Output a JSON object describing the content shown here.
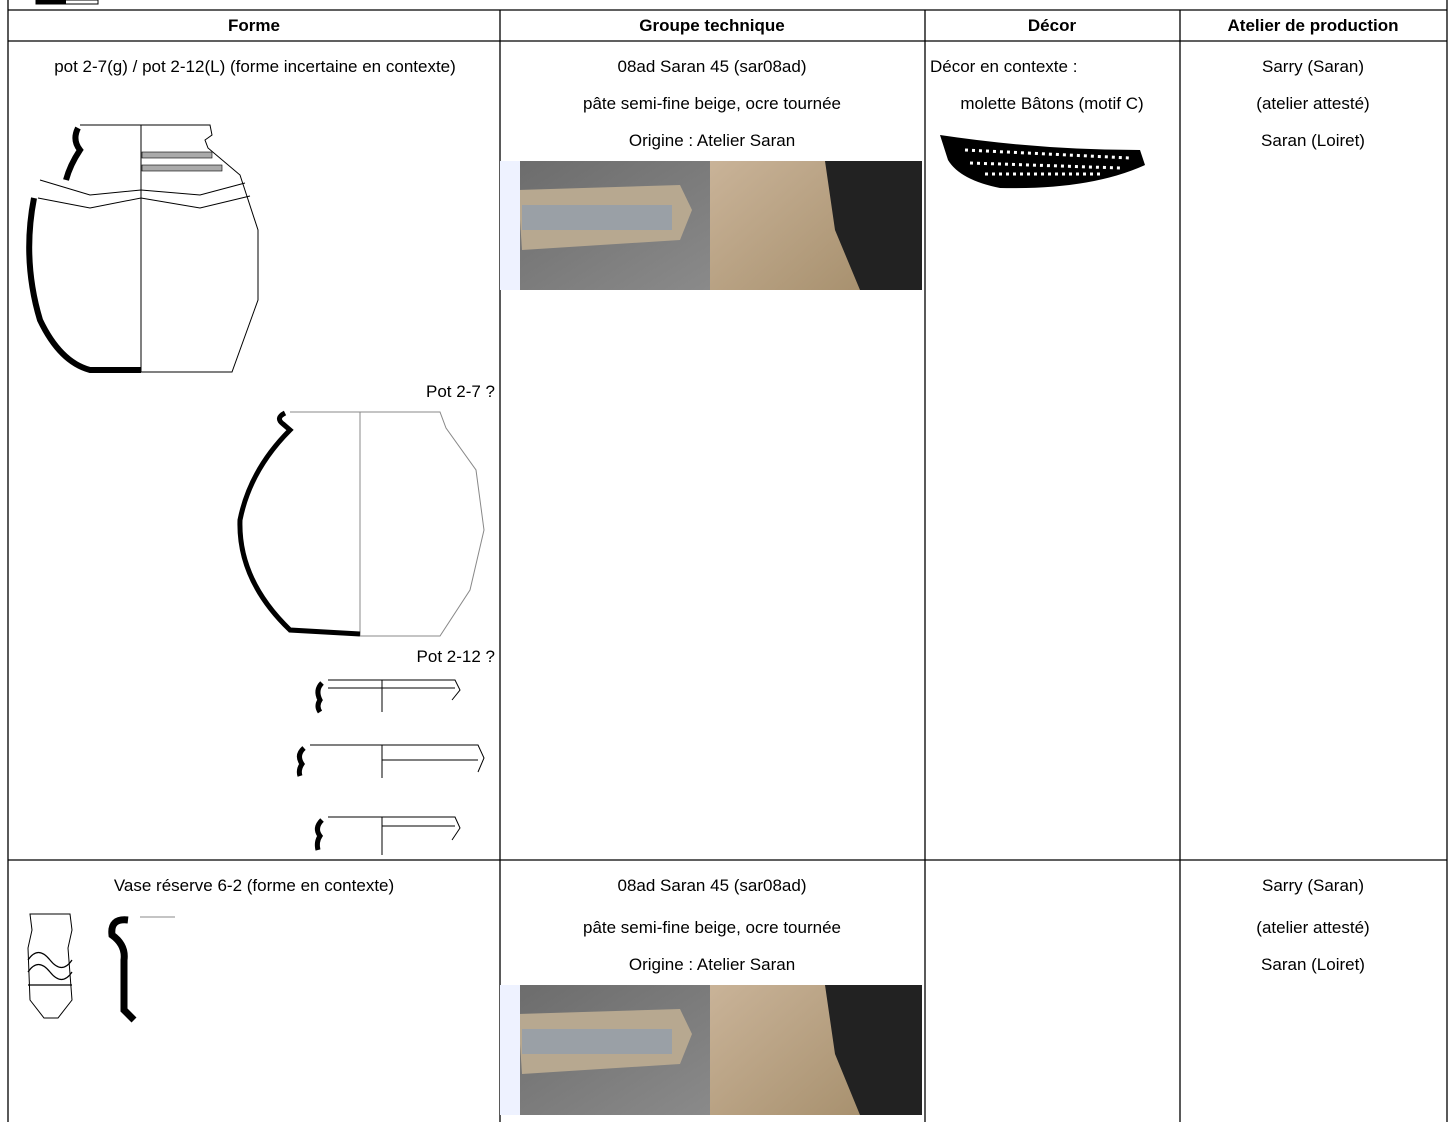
{
  "table": {
    "headers": [
      "Forme",
      "Groupe technique",
      "Décor",
      "Atelier de production"
    ],
    "rows": [
      {
        "forme": "pot 2-7(g) / pot 2-12(L) (forme incertaine  en contexte)",
        "figure_labels": [
          "Pot 2-7 ?",
          "Pot 2-12 ?"
        ],
        "groupe_technique": [
          "08ad Saran 45 (sar08ad)",
          "pâte semi-fine beige, ocre tournée",
          "Origine : Atelier Saran"
        ],
        "decor": [
          "Décor en contexte :",
          "molette Bâtons (motif C)"
        ],
        "atelier": [
          "Sarry (Saran)",
          "(atelier attesté)",
          "Saran (Loiret)"
        ]
      },
      {
        "forme": "Vase réserve 6-2 (forme  en contexte)",
        "groupe_technique": [
          "08ad Saran 45 (sar08ad)",
          "pâte semi-fine beige, ocre tournée",
          "Origine : Atelier Saran"
        ],
        "decor": [],
        "atelier": [
          "Sarry (Saran)",
          "(atelier attesté)",
          "Saran (Loiret)"
        ]
      }
    ]
  }
}
